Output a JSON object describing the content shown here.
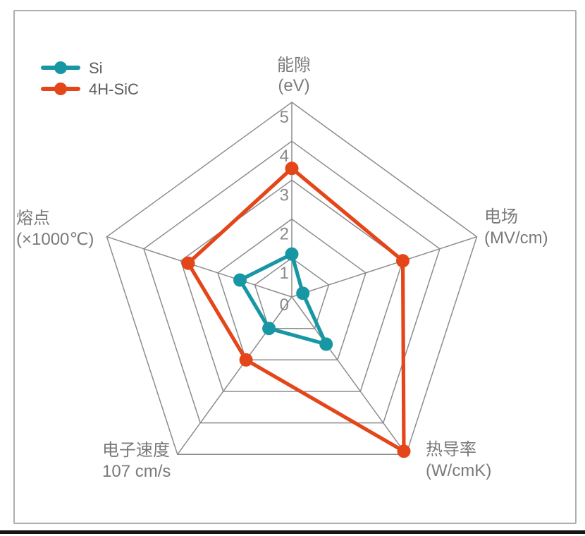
{
  "chart_data": {
    "type": "radar",
    "title": "",
    "grid": {
      "shape": "pentagon",
      "rings": 5,
      "color": "#8c8c8c",
      "spokes": true
    },
    "scale": {
      "min": 0,
      "max": 5,
      "ticks": [
        0,
        1,
        2,
        3,
        4,
        5
      ],
      "tick_axis": "top"
    },
    "axes": [
      {
        "line1": "能隙",
        "line2": "(eV)"
      },
      {
        "line1": "电场",
        "line2": "(MV/cm)"
      },
      {
        "line1": "热导率",
        "line2": "(W/cmK)"
      },
      {
        "line1": "电子速度",
        "line2": "107 cm/s"
      },
      {
        "line1": "熔点",
        "line2": "(×1000℃)"
      }
    ],
    "series": [
      {
        "name": "Si",
        "color": "#1797a3",
        "values": [
          1.1,
          0.3,
          1.5,
          1.0,
          1.4
        ]
      },
      {
        "name": "4H-SiC",
        "color": "#e4461a",
        "values": [
          3.3,
          3.0,
          4.9,
          2.0,
          2.8
        ]
      }
    ],
    "legend_position": "top-left"
  },
  "colors": {
    "grid_line": "#8c8c8c",
    "tick_text": "#8a8a8a",
    "axis_label_text": "#7a7a7a",
    "legend_text": "#5c5c5c",
    "card_border": "#aeaeae",
    "bottom_bar": "#141414",
    "background": "#ffffff"
  }
}
